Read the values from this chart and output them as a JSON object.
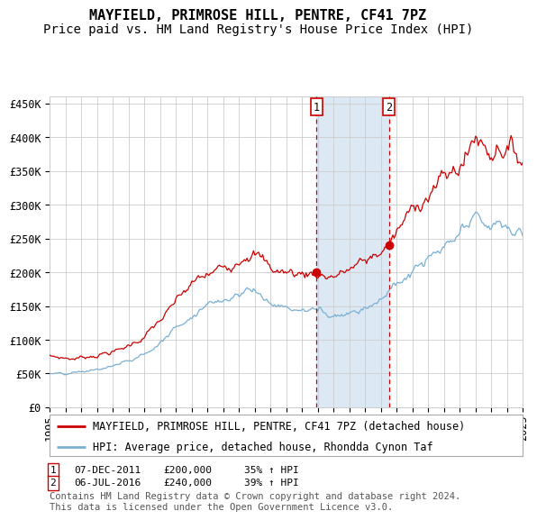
{
  "title": "MAYFIELD, PRIMROSE HILL, PENTRE, CF41 7PZ",
  "subtitle": "Price paid vs. HM Land Registry's House Price Index (HPI)",
  "ylim": [
    0,
    460000
  ],
  "yticks": [
    0,
    50000,
    100000,
    150000,
    200000,
    250000,
    300000,
    350000,
    400000,
    450000
  ],
  "ytick_labels": [
    "£0",
    "£50K",
    "£100K",
    "£150K",
    "£200K",
    "£250K",
    "£300K",
    "£350K",
    "£400K",
    "£450K"
  ],
  "background_color": "#ffffff",
  "plot_bg_color": "#ffffff",
  "grid_color": "#cccccc",
  "transaction1": {
    "date": "07-DEC-2011",
    "price": 200000,
    "pct": "35%",
    "direction": "↑",
    "label": "1"
  },
  "transaction2": {
    "date": "06-JUL-2016",
    "price": 240000,
    "pct": "39%",
    "direction": "↑",
    "label": "2"
  },
  "transaction1_x": 2011.92,
  "transaction2_x": 2016.51,
  "shade_color": "#dce9f5",
  "line1_color": "#cc0000",
  "line2_color": "#7ab0d4",
  "legend_label1": "MAYFIELD, PRIMROSE HILL, PENTRE, CF41 7PZ (detached house)",
  "legend_label2": "HPI: Average price, detached house, Rhondda Cynon Taf",
  "footnote": "Contains HM Land Registry data © Crown copyright and database right 2024.\nThis data is licensed under the Open Government Licence v3.0.",
  "title_fontsize": 11,
  "subtitle_fontsize": 10,
  "tick_fontsize": 8.5,
  "legend_fontsize": 8.5,
  "footnote_fontsize": 7.5,
  "red_key_points": [
    [
      1995.0,
      75000
    ],
    [
      1996.5,
      72000
    ],
    [
      1998.0,
      78000
    ],
    [
      1999.5,
      85000
    ],
    [
      2001.0,
      105000
    ],
    [
      2002.5,
      140000
    ],
    [
      2003.5,
      170000
    ],
    [
      2004.5,
      190000
    ],
    [
      2005.5,
      200000
    ],
    [
      2006.5,
      215000
    ],
    [
      2007.5,
      235000
    ],
    [
      2008.0,
      230000
    ],
    [
      2009.0,
      205000
    ],
    [
      2010.0,
      200000
    ],
    [
      2011.0,
      198000
    ],
    [
      2011.92,
      200000
    ],
    [
      2012.5,
      195000
    ],
    [
      2013.5,
      198000
    ],
    [
      2014.0,
      205000
    ],
    [
      2015.0,
      215000
    ],
    [
      2016.51,
      240000
    ],
    [
      2017.5,
      275000
    ],
    [
      2018.5,
      310000
    ],
    [
      2019.5,
      330000
    ],
    [
      2020.5,
      345000
    ],
    [
      2021.5,
      375000
    ],
    [
      2022.0,
      405000
    ],
    [
      2022.5,
      390000
    ],
    [
      2023.0,
      380000
    ],
    [
      2023.5,
      395000
    ],
    [
      2024.0,
      385000
    ],
    [
      2024.5,
      375000
    ],
    [
      2025.0,
      370000
    ]
  ],
  "blue_key_points": [
    [
      1995.0,
      50000
    ],
    [
      1996.0,
      48000
    ],
    [
      1997.0,
      52000
    ],
    [
      1998.5,
      58000
    ],
    [
      2000.0,
      68000
    ],
    [
      2001.5,
      85000
    ],
    [
      2002.5,
      108000
    ],
    [
      2003.5,
      128000
    ],
    [
      2004.5,
      148000
    ],
    [
      2005.5,
      158000
    ],
    [
      2006.5,
      165000
    ],
    [
      2007.5,
      178000
    ],
    [
      2008.0,
      172000
    ],
    [
      2009.0,
      155000
    ],
    [
      2010.0,
      148000
    ],
    [
      2011.0,
      143000
    ],
    [
      2011.92,
      145000
    ],
    [
      2012.5,
      140000
    ],
    [
      2013.0,
      138000
    ],
    [
      2013.5,
      140000
    ],
    [
      2014.5,
      145000
    ],
    [
      2015.5,
      155000
    ],
    [
      2016.51,
      172000
    ],
    [
      2017.5,
      190000
    ],
    [
      2018.5,
      210000
    ],
    [
      2019.5,
      225000
    ],
    [
      2020.5,
      240000
    ],
    [
      2021.5,
      265000
    ],
    [
      2022.0,
      278000
    ],
    [
      2022.5,
      272000
    ],
    [
      2023.0,
      268000
    ],
    [
      2023.5,
      270000
    ],
    [
      2024.0,
      265000
    ],
    [
      2024.5,
      260000
    ],
    [
      2025.0,
      258000
    ]
  ]
}
